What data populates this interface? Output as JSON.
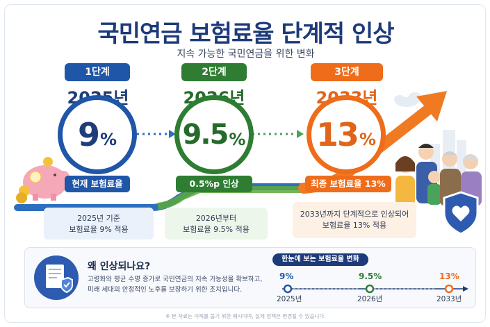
{
  "title": "국민연금 보험료율 단계적 인상",
  "subtitle": "지속 가능한 국민연금을 위한 변화",
  "stages": [
    {
      "step": "1단계",
      "year": "2025년",
      "rate": "9",
      "unit": "%",
      "label": "현재 보험료율",
      "note_lines": [
        "2025년 기준",
        "보험료율 9% 적용"
      ],
      "color": "#1f56a8"
    },
    {
      "step": "2단계",
      "year": "2026년",
      "rate": "9.5",
      "unit": "%",
      "label": "0.5%p 인상",
      "note_lines": [
        "2026년부터",
        "보험료율 9.5% 적용"
      ],
      "color": "#2e7d32"
    },
    {
      "step": "3단계",
      "year": "2033년",
      "rate": "13",
      "unit": "%",
      "label": "최종 보험료율 13%",
      "note_lines": [
        "2033년까지 단계적으로 인상되어",
        "보험료율 13% 적용"
      ],
      "color": "#ef6c1a"
    }
  ],
  "why": {
    "title": "왜 인상되나요?",
    "lines": [
      "고령화와 평균 수명 증가로 국민연금의 지속 가능성을 확보하고,",
      "미래 세대의 안정적인 노후를 보장하기 위한 조치입니다."
    ]
  },
  "summary": {
    "title": "한눈에 보는 보험료율 변화",
    "points": [
      {
        "rate": "9%",
        "year": "2025년",
        "color": "#1f56a8"
      },
      {
        "rate": "9.5%",
        "year": "2026년",
        "color": "#2e7d32"
      },
      {
        "rate": "13%",
        "year": "2033년",
        "color": "#ef6c1a"
      }
    ]
  },
  "footer": "※ 본 자료는 이해를 돕기 위한 예시이며, 실제 정책은 변경될 수 있습니다."
}
